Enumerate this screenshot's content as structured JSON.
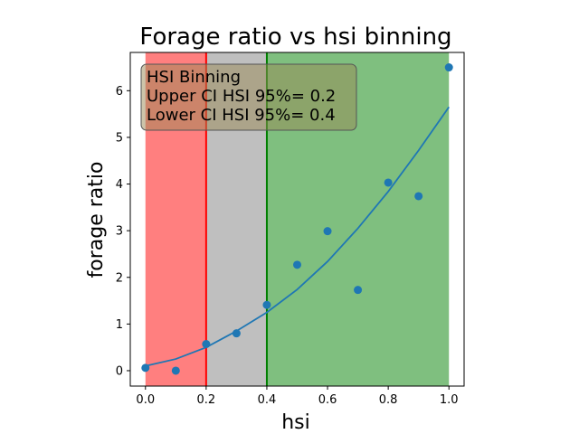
{
  "chart_data": {
    "type": "scatter",
    "title": "Forage ratio vs hsi binning",
    "xlabel": "hsi",
    "ylabel": "forage ratio",
    "xlim": [
      -0.05,
      1.05
    ],
    "ylim": [
      -0.33,
      6.82
    ],
    "x_ticks": [
      0.0,
      0.2,
      0.4,
      0.6,
      0.8,
      1.0
    ],
    "x_tick_labels": [
      "0.0",
      "0.2",
      "0.4",
      "0.6",
      "0.8",
      "1.0"
    ],
    "y_ticks": [
      0,
      1,
      2,
      3,
      4,
      5,
      6
    ],
    "y_tick_labels": [
      "0",
      "1",
      "2",
      "3",
      "4",
      "5",
      "6"
    ],
    "grid": false,
    "points": {
      "x": [
        0.0,
        0.1,
        0.2,
        0.3,
        0.4,
        0.5,
        0.6,
        0.7,
        0.8,
        0.9,
        1.0
      ],
      "y": [
        0.06,
        0.0,
        0.57,
        0.8,
        1.41,
        2.27,
        2.99,
        1.73,
        4.03,
        3.74,
        6.5
      ],
      "color": "#1f77b4"
    },
    "fit_line": {
      "x": [
        0.0,
        0.1,
        0.2,
        0.3,
        0.4,
        0.5,
        0.6,
        0.7,
        0.8,
        0.9,
        1.0
      ],
      "y": [
        0.1,
        0.25,
        0.5,
        0.85,
        1.25,
        1.74,
        2.34,
        3.05,
        3.84,
        4.72,
        5.65
      ],
      "color": "#1f77b4"
    },
    "bands": [
      {
        "from": 0.0,
        "to": 0.2,
        "color": "#ff0000",
        "alpha": 0.5
      },
      {
        "from": 0.2,
        "to": 0.4,
        "color": "#808080",
        "alpha": 0.5
      },
      {
        "from": 0.4,
        "to": 1.0,
        "color": "#008000",
        "alpha": 0.5
      }
    ],
    "vlines": [
      {
        "x": 0.2,
        "color": "#ff0000"
      },
      {
        "x": 0.4,
        "color": "#008000"
      }
    ],
    "annotation": {
      "lines": [
        "HSI Binning",
        "Upper CI HSI 95%= 0.2",
        "Lower CI HSI 95%= 0.4"
      ],
      "position": "top-left",
      "box_color": "#9a8a56"
    }
  }
}
